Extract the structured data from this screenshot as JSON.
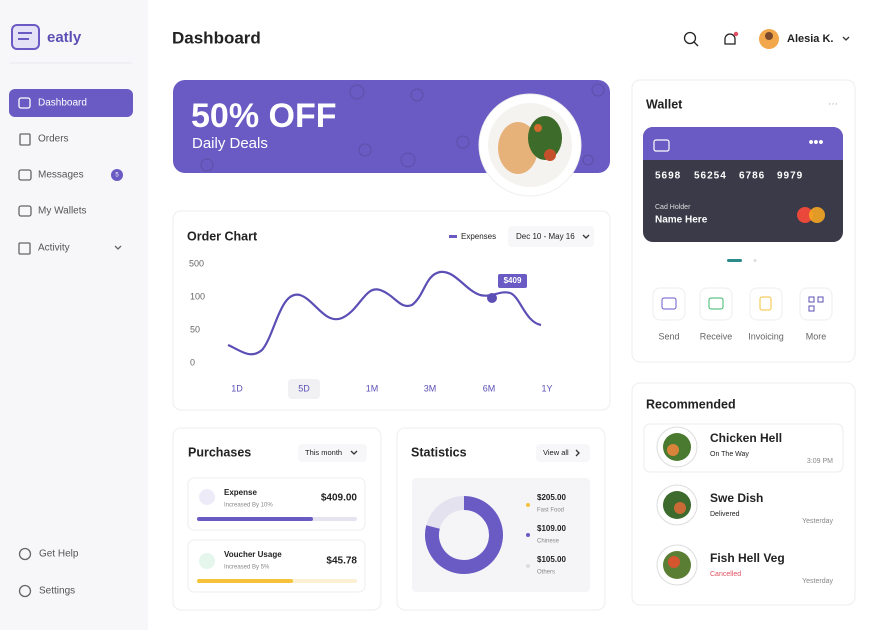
{
  "brand": "eatly",
  "nav": [
    {
      "label": "Dashboard"
    },
    {
      "label": "Orders"
    },
    {
      "label": "Messages",
      "badge": "5"
    },
    {
      "label": "My Wallets"
    },
    {
      "label": "Activity"
    }
  ],
  "nav_bottom": [
    "Get Help",
    "Settings"
  ],
  "header": {
    "title": "Dashboard",
    "user": "Alesia K."
  },
  "banner": {
    "headline": "50% OFF",
    "subline": "Daily Deals"
  },
  "order_chart": {
    "title": "Order Chart",
    "legend": "Expenses",
    "range": "Dec 10 - May 16",
    "yticks": [
      "500",
      "100",
      "50",
      "0"
    ],
    "tooltip": "$409",
    "periods": [
      "1D",
      "5D",
      "1M",
      "3M",
      "6M",
      "1Y"
    ]
  },
  "purchases": {
    "title": "Purchases",
    "filter": "This month",
    "items": [
      {
        "name": "Expense",
        "note": "Increased By 10%",
        "amount": "$409.00"
      },
      {
        "name": "Voucher Usage",
        "note": "Increased By 5%",
        "amount": "$45.78"
      }
    ]
  },
  "statistics": {
    "title": "Statistics",
    "action": "View all",
    "items": [
      {
        "amount": "$205.00",
        "label": "Fast Food"
      },
      {
        "amount": "$109.00",
        "label": "Chinese"
      },
      {
        "amount": "$105.00",
        "label": "Others"
      }
    ]
  },
  "wallet": {
    "title": "Wallet",
    "card_number": [
      "5698",
      "56254",
      "6786",
      "9979"
    ],
    "holder_label": "Cad Holder",
    "holder_name": "Name Here",
    "actions": [
      "Send",
      "Receive",
      "Invoicing",
      "More"
    ]
  },
  "recommended": {
    "title": "Recommended",
    "items": [
      {
        "name": "Chicken Hell",
        "status": "On The Way",
        "time": "3:09 PM"
      },
      {
        "name": "Swe Dish",
        "status": "Delivered",
        "time": "Yesterday"
      },
      {
        "name": "Fish Hell Veg",
        "status": "Cancelled",
        "time": "Yesterday"
      }
    ]
  }
}
